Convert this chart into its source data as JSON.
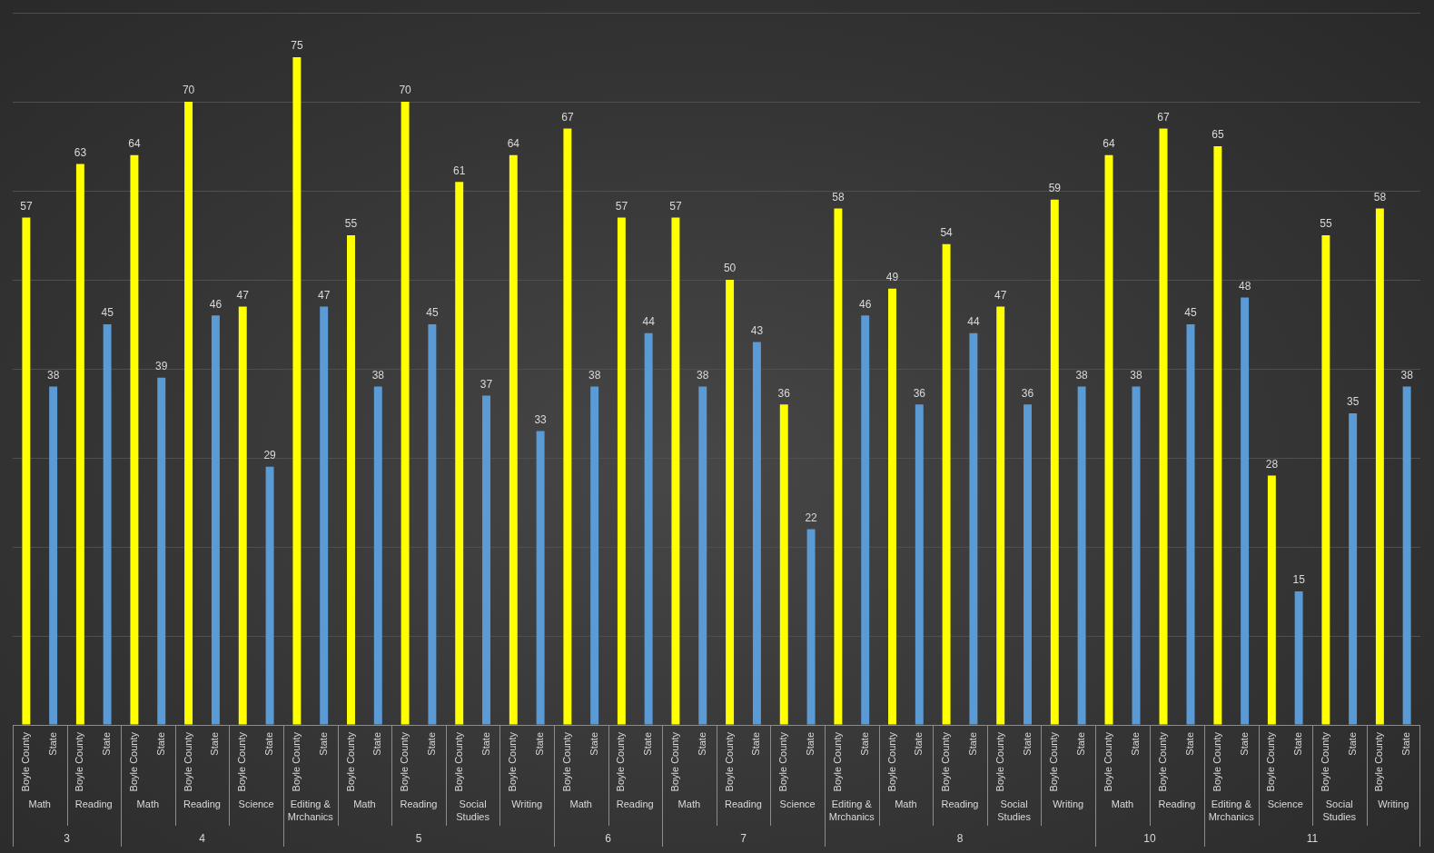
{
  "chart_data": [
    {
      "type": "bar",
      "xlabel": "3",
      "categories": [
        "Math",
        "Reading"
      ],
      "series": [
        {
          "name": "Boyle County",
          "color": "#ffff00",
          "values": [
            57,
            63
          ]
        },
        {
          "name": "State",
          "color": "#5b9bd5",
          "values": [
            38,
            45
          ]
        }
      ],
      "ylim": [
        0,
        80
      ],
      "yticks": [
        {
          "value": 0,
          "label": null
        },
        {
          "value": 10,
          "label": null
        },
        {
          "value": 20,
          "label": null
        },
        {
          "value": 30,
          "label": null
        },
        {
          "value": 40,
          "label": null
        },
        {
          "value": 50,
          "label": null
        },
        {
          "value": 60,
          "label": null
        },
        {
          "value": 70,
          "label": null
        },
        {
          "value": 80,
          "label": null
        }
      ],
      "grid": "y",
      "tick_labels": "x",
      "data_labels": true
    },
    {
      "type": "bar",
      "xlabel": "4",
      "categories": [
        "Math",
        "Reading",
        "Science"
      ],
      "series": [
        {
          "name": "Boyle County",
          "color": "#ffff00",
          "values": [
            64,
            70,
            47
          ]
        },
        {
          "name": "State",
          "color": "#5b9bd5",
          "values": [
            39,
            46,
            29
          ]
        }
      ],
      "ylim": [
        0,
        80
      ],
      "yticks": [
        {
          "value": 0,
          "label": null
        },
        {
          "value": 10,
          "label": null
        },
        {
          "value": 20,
          "label": null
        },
        {
          "value": 30,
          "label": null
        },
        {
          "value": 40,
          "label": null
        },
        {
          "value": 50,
          "label": null
        },
        {
          "value": 60,
          "label": null
        },
        {
          "value": 70,
          "label": null
        },
        {
          "value": 80,
          "label": null
        }
      ],
      "grid": "y",
      "tick_labels": "x",
      "data_labels": true
    },
    {
      "type": "bar",
      "xlabel": "5",
      "categories": [
        "Editing & Mrchanics",
        "Math",
        "Reading",
        "Social Studies",
        "Writing"
      ],
      "series": [
        {
          "name": "Boyle County",
          "color": "#ffff00",
          "values": [
            75,
            55,
            70,
            61,
            64
          ]
        },
        {
          "name": "State",
          "color": "#5b9bd5",
          "values": [
            47,
            38,
            45,
            37,
            33
          ]
        }
      ],
      "ylim": [
        0,
        80
      ],
      "yticks": [
        {
          "value": 0,
          "label": null
        },
        {
          "value": 10,
          "label": null
        },
        {
          "value": 20,
          "label": null
        },
        {
          "value": 30,
          "label": null
        },
        {
          "value": 40,
          "label": null
        },
        {
          "value": 50,
          "label": null
        },
        {
          "value": 60,
          "label": null
        },
        {
          "value": 70,
          "label": null
        },
        {
          "value": 80,
          "label": null
        }
      ],
      "grid": "y",
      "tick_labels": "x",
      "data_labels": true
    },
    {
      "type": "bar",
      "xlabel": "6",
      "categories": [
        "Math",
        "Reading"
      ],
      "series": [
        {
          "name": "Boyle County",
          "color": "#ffff00",
          "values": [
            67,
            57
          ]
        },
        {
          "name": "State",
          "color": "#5b9bd5",
          "values": [
            38,
            44
          ]
        }
      ],
      "ylim": [
        0,
        80
      ],
      "yticks": [
        {
          "value": 0,
          "label": null
        },
        {
          "value": 10,
          "label": null
        },
        {
          "value": 20,
          "label": null
        },
        {
          "value": 30,
          "label": null
        },
        {
          "value": 40,
          "label": null
        },
        {
          "value": 50,
          "label": null
        },
        {
          "value": 60,
          "label": null
        },
        {
          "value": 70,
          "label": null
        },
        {
          "value": 80,
          "label": null
        }
      ],
      "grid": "y",
      "tick_labels": "x",
      "data_labels": true
    },
    {
      "type": "bar",
      "xlabel": "7",
      "categories": [
        "Math",
        "Reading",
        "Science"
      ],
      "series": [
        {
          "name": "Boyle County",
          "color": "#ffff00",
          "values": [
            57,
            50,
            36
          ]
        },
        {
          "name": "State",
          "color": "#5b9bd5",
          "values": [
            38,
            43,
            22
          ]
        }
      ],
      "ylim": [
        0,
        80
      ],
      "yticks": [
        {
          "value": 0,
          "label": null
        },
        {
          "value": 10,
          "label": null
        },
        {
          "value": 20,
          "label": null
        },
        {
          "value": 30,
          "label": null
        },
        {
          "value": 40,
          "label": null
        },
        {
          "value": 50,
          "label": null
        },
        {
          "value": 60,
          "label": null
        },
        {
          "value": 70,
          "label": null
        },
        {
          "value": 80,
          "label": null
        }
      ],
      "grid": "y",
      "tick_labels": "x",
      "data_labels": true
    },
    {
      "type": "bar",
      "xlabel": "8",
      "categories": [
        "Editing & Mrchanics",
        "Math",
        "Reading",
        "Social Studies",
        "Writing"
      ],
      "series": [
        {
          "name": "Boyle County",
          "color": "#ffff00",
          "values": [
            58,
            49,
            54,
            47,
            59
          ]
        },
        {
          "name": "State",
          "color": "#5b9bd5",
          "values": [
            46,
            36,
            44,
            36,
            38
          ]
        }
      ],
      "ylim": [
        0,
        80
      ],
      "yticks": [
        {
          "value": 0,
          "label": null
        },
        {
          "value": 10,
          "label": null
        },
        {
          "value": 20,
          "label": null
        },
        {
          "value": 30,
          "label": null
        },
        {
          "value": 40,
          "label": null
        },
        {
          "value": 50,
          "label": null
        },
        {
          "value": 60,
          "label": null
        },
        {
          "value": 70,
          "label": null
        },
        {
          "value": 80,
          "label": null
        }
      ],
      "grid": "y",
      "tick_labels": "x",
      "data_labels": true
    },
    {
      "type": "bar",
      "xlabel": "10",
      "categories": [
        "Math",
        "Reading"
      ],
      "series": [
        {
          "name": "Boyle County",
          "color": "#ffff00",
          "values": [
            64,
            67
          ]
        },
        {
          "name": "State",
          "color": "#5b9bd5",
          "values": [
            38,
            45
          ]
        }
      ],
      "ylim": [
        0,
        80
      ],
      "yticks": [
        {
          "value": 0,
          "label": null
        },
        {
          "value": 10,
          "label": null
        },
        {
          "value": 20,
          "label": null
        },
        {
          "value": 30,
          "label": null
        },
        {
          "value": 40,
          "label": null
        },
        {
          "value": 50,
          "label": null
        },
        {
          "value": 60,
          "label": null
        },
        {
          "value": 70,
          "label": null
        },
        {
          "value": 80,
          "label": null
        }
      ],
      "grid": "y",
      "tick_labels": "x",
      "data_labels": true
    },
    {
      "type": "bar",
      "xlabel": "11",
      "categories": [
        "Editing & Mrchanics",
        "Science",
        "Social Studies",
        "Writing"
      ],
      "series": [
        {
          "name": "Boyle County",
          "color": "#ffff00",
          "values": [
            65,
            28,
            55,
            58
          ]
        },
        {
          "name": "State",
          "color": "#5b9bd5",
          "values": [
            48,
            15,
            35,
            38
          ]
        }
      ],
      "ylim": [
        0,
        80
      ],
      "yticks": [
        {
          "value": 0,
          "label": null
        },
        {
          "value": 10,
          "label": null
        },
        {
          "value": 20,
          "label": null
        },
        {
          "value": 30,
          "label": null
        },
        {
          "value": 40,
          "label": null
        },
        {
          "value": 50,
          "label": null
        },
        {
          "value": 60,
          "label": null
        },
        {
          "value": 70,
          "label": null
        },
        {
          "value": 80,
          "label": null
        }
      ],
      "grid": "y",
      "tick_labels": "x",
      "data_labels": true
    }
  ]
}
